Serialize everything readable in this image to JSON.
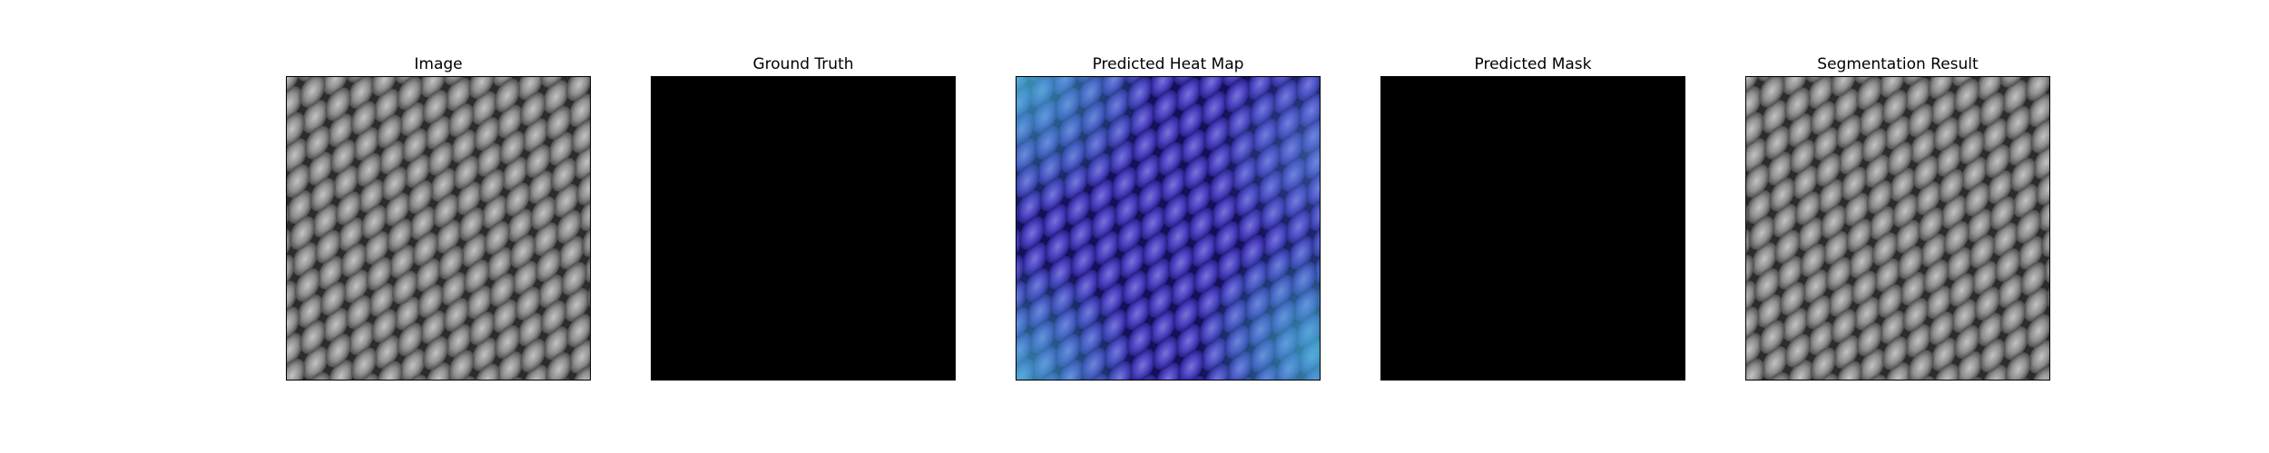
{
  "panels": [
    {
      "title": "Image",
      "content": "texture-gray"
    },
    {
      "title": "Ground Truth",
      "content": "solid-black"
    },
    {
      "title": "Predicted Heat Map",
      "content": "texture-heatmap-overlay"
    },
    {
      "title": "Predicted Mask",
      "content": "solid-black"
    },
    {
      "title": "Segmentation Result",
      "content": "texture-gray"
    }
  ],
  "colors": {
    "background": "#ffffff",
    "mask": "#000000",
    "heat_low": "#3a2fb8",
    "heat_high": "#47c4d6"
  }
}
